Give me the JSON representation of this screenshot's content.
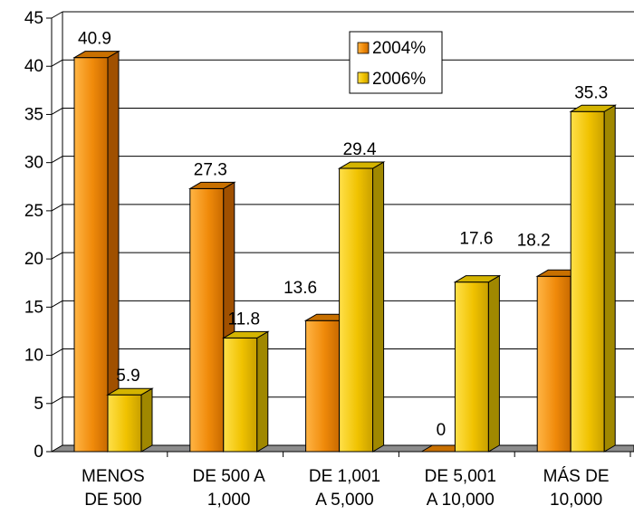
{
  "chart_data": {
    "type": "bar",
    "categories": [
      [
        "MENOS",
        "DE 500"
      ],
      [
        "DE 500 A",
        "1,000"
      ],
      [
        "DE 1,001",
        "A 5,000"
      ],
      [
        "DE 5,001",
        "A 10,000"
      ],
      [
        "MÁS DE",
        "10,000"
      ]
    ],
    "series": [
      {
        "name": "2004%",
        "values": [
          40.9,
          27.3,
          13.6,
          0,
          18.2
        ],
        "labels": [
          "40.9",
          "27.3",
          "13.6",
          "0",
          "18.2"
        ]
      },
      {
        "name": "2006%",
        "values": [
          5.9,
          11.8,
          29.4,
          17.6,
          35.3
        ],
        "labels": [
          "5.9",
          "11.8",
          "29.4",
          "17.6",
          "35.3"
        ]
      }
    ],
    "yticks": [
      "0",
      "5",
      "10",
      "15",
      "20",
      "25",
      "30",
      "35",
      "40",
      "45"
    ],
    "ylim": [
      0,
      45
    ],
    "grid": true,
    "legend": "top-center",
    "colors": {
      "series_front": [
        "#f59a10",
        "#f0c600"
      ],
      "series_top": [
        "#c87000",
        "#d4b400"
      ],
      "series_side": [
        "#a05000",
        "#a08800"
      ],
      "floor": "#8c8c8c",
      "grid": "#000000"
    }
  }
}
